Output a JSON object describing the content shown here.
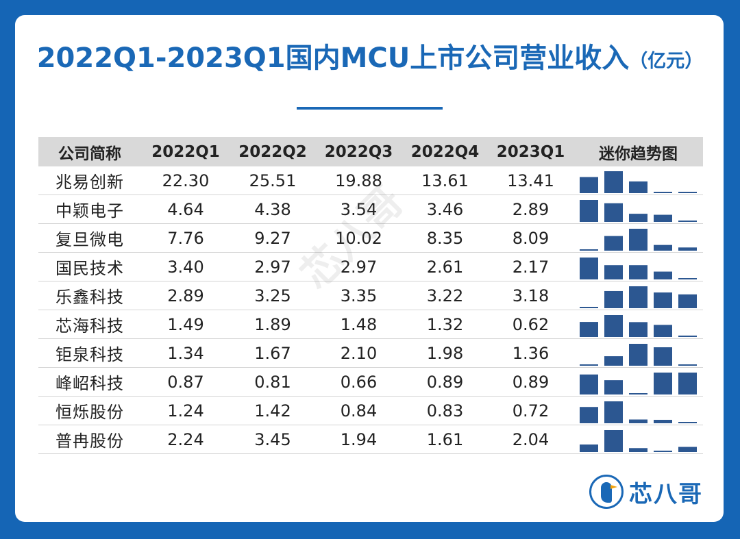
{
  "title": {
    "main": "2022Q1-2023Q1国内MCU上市公司营业收入",
    "unit": "（亿元）"
  },
  "colors": {
    "background": "#1565b5",
    "accent": "#1a68b6",
    "bar": "#2c5791",
    "header_bg": "#d9d9d9"
  },
  "chart_data": {
    "type": "table",
    "columns": [
      "公司简称",
      "2022Q1",
      "2022Q2",
      "2022Q3",
      "2022Q4",
      "2023Q1",
      "迷你趋势图"
    ],
    "categories": [
      "2022Q1",
      "2022Q2",
      "2022Q3",
      "2022Q4",
      "2023Q1"
    ],
    "rows": [
      {
        "name": "兆易创新",
        "values": [
          "22.30",
          "25.51",
          "19.88",
          "13.61",
          "13.41"
        ]
      },
      {
        "name": "中颖电子",
        "values": [
          "4.64",
          "4.38",
          "3.54",
          "3.46",
          "2.89"
        ]
      },
      {
        "name": "复旦微电",
        "values": [
          "7.76",
          "9.27",
          "10.02",
          "8.35",
          "8.09"
        ]
      },
      {
        "name": "国民技术",
        "values": [
          "3.40",
          "2.97",
          "2.97",
          "2.61",
          "2.17"
        ]
      },
      {
        "name": "乐鑫科技",
        "values": [
          "2.89",
          "3.25",
          "3.35",
          "3.22",
          "3.18"
        ]
      },
      {
        "name": "芯海科技",
        "values": [
          "1.49",
          "1.89",
          "1.48",
          "1.32",
          "0.62"
        ]
      },
      {
        "name": "钜泉科技",
        "values": [
          "1.34",
          "1.67",
          "2.10",
          "1.98",
          "1.36"
        ]
      },
      {
        "name": "峰岹科技",
        "values": [
          "0.87",
          "0.81",
          "0.66",
          "0.89",
          "0.89"
        ]
      },
      {
        "name": "恒烁股份",
        "values": [
          "1.24",
          "1.42",
          "0.84",
          "0.83",
          "0.72"
        ]
      },
      {
        "name": "普冉股份",
        "values": [
          "2.24",
          "3.45",
          "1.94",
          "1.61",
          "2.04"
        ]
      }
    ],
    "sparkline": {
      "type": "bar",
      "scale": "per-row min-max"
    }
  },
  "logo": {
    "text": "芯八哥"
  },
  "watermark": {
    "text": "芯八哥"
  }
}
